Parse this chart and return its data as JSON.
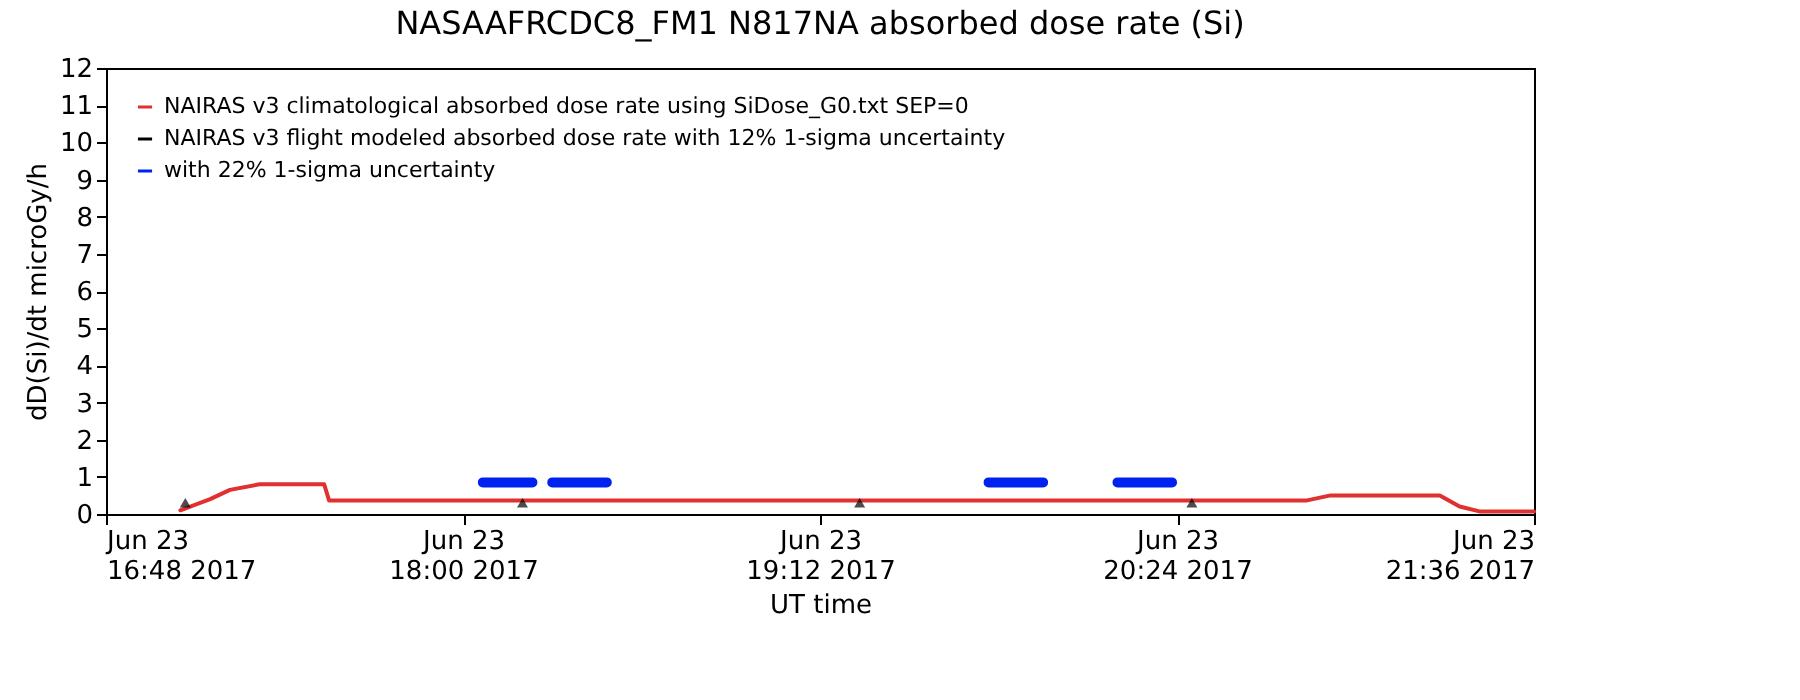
{
  "chart_data": {
    "type": "line",
    "title": "NASAAFRCDC8_FM1   N817NA absorbed dose rate (Si)",
    "xlabel": "UT time",
    "ylabel": "dD(Si)/dt microGy/h",
    "xlim": [
      "2017-06-23T16:48",
      "2017-06-23T21:36"
    ],
    "xticks": [
      {
        "value": "2017-06-23T16:48",
        "label": "Jun 23\n16:48 2017"
      },
      {
        "value": "2017-06-23T18:00",
        "label": "Jun 23\n18:00 2017"
      },
      {
        "value": "2017-06-23T19:12",
        "label": "Jun 23\n19:12 2017"
      },
      {
        "value": "2017-06-23T20:24",
        "label": "Jun 23\n20:24 2017"
      },
      {
        "value": "2017-06-23T21:36",
        "label": "Jun 23\n21:36 2017"
      }
    ],
    "ylim": [
      0,
      12
    ],
    "yticks": [
      0,
      1,
      2,
      3,
      4,
      5,
      6,
      7,
      8,
      9,
      10,
      11,
      12
    ],
    "grid": false,
    "legend": "top left",
    "series": [
      {
        "name": "NAIRAS v3 climatological absorbed dose rate using SiDose_G0.txt SEP=0",
        "color": "#e03030",
        "x": [
          "2017-06-23T17:03",
          "2017-06-23T17:09",
          "2017-06-23T17:13",
          "2017-06-23T17:19",
          "2017-06-23T17:32",
          "2017-06-23T17:33",
          "2017-06-23T20:50",
          "2017-06-23T20:55",
          "2017-06-23T21:17",
          "2017-06-23T21:21",
          "2017-06-23T21:25",
          "2017-06-23T21:36"
        ],
        "values": [
          0.1,
          0.4,
          0.65,
          0.8,
          0.8,
          0.36,
          0.36,
          0.5,
          0.5,
          0.2,
          0.07,
          0.07
        ]
      },
      {
        "name": "NAIRAS v3 flight modeled absorbed dose rate with 12% 1-sigma uncertainty",
        "color": "#000000",
        "type": "scatter",
        "marker": "triangle",
        "x": [
          "2017-06-23T17:04",
          "2017-06-23T18:12",
          "2017-06-23T19:20",
          "2017-06-23T20:27"
        ],
        "values": [
          0.3,
          0.3,
          0.3,
          0.3
        ]
      },
      {
        "name": "with 22% 1-sigma uncertainty",
        "color": "#0022ee",
        "x": [
          "2017-06-23T18:04",
          "2017-06-23T18:14",
          "2017-06-23T18:16",
          "2017-06-23T18:18",
          "2017-06-23T18:29",
          "2017-06-23T19:20",
          "2017-06-23T19:46",
          "2017-06-23T19:57",
          "2017-06-23T20:05",
          "2017-06-23T20:12",
          "2017-06-23T20:23"
        ],
        "values": [
          0.85,
          0.85,
          null,
          0.85,
          0.85,
          null,
          0.85,
          0.85,
          null,
          0.85,
          0.85
        ]
      }
    ]
  }
}
